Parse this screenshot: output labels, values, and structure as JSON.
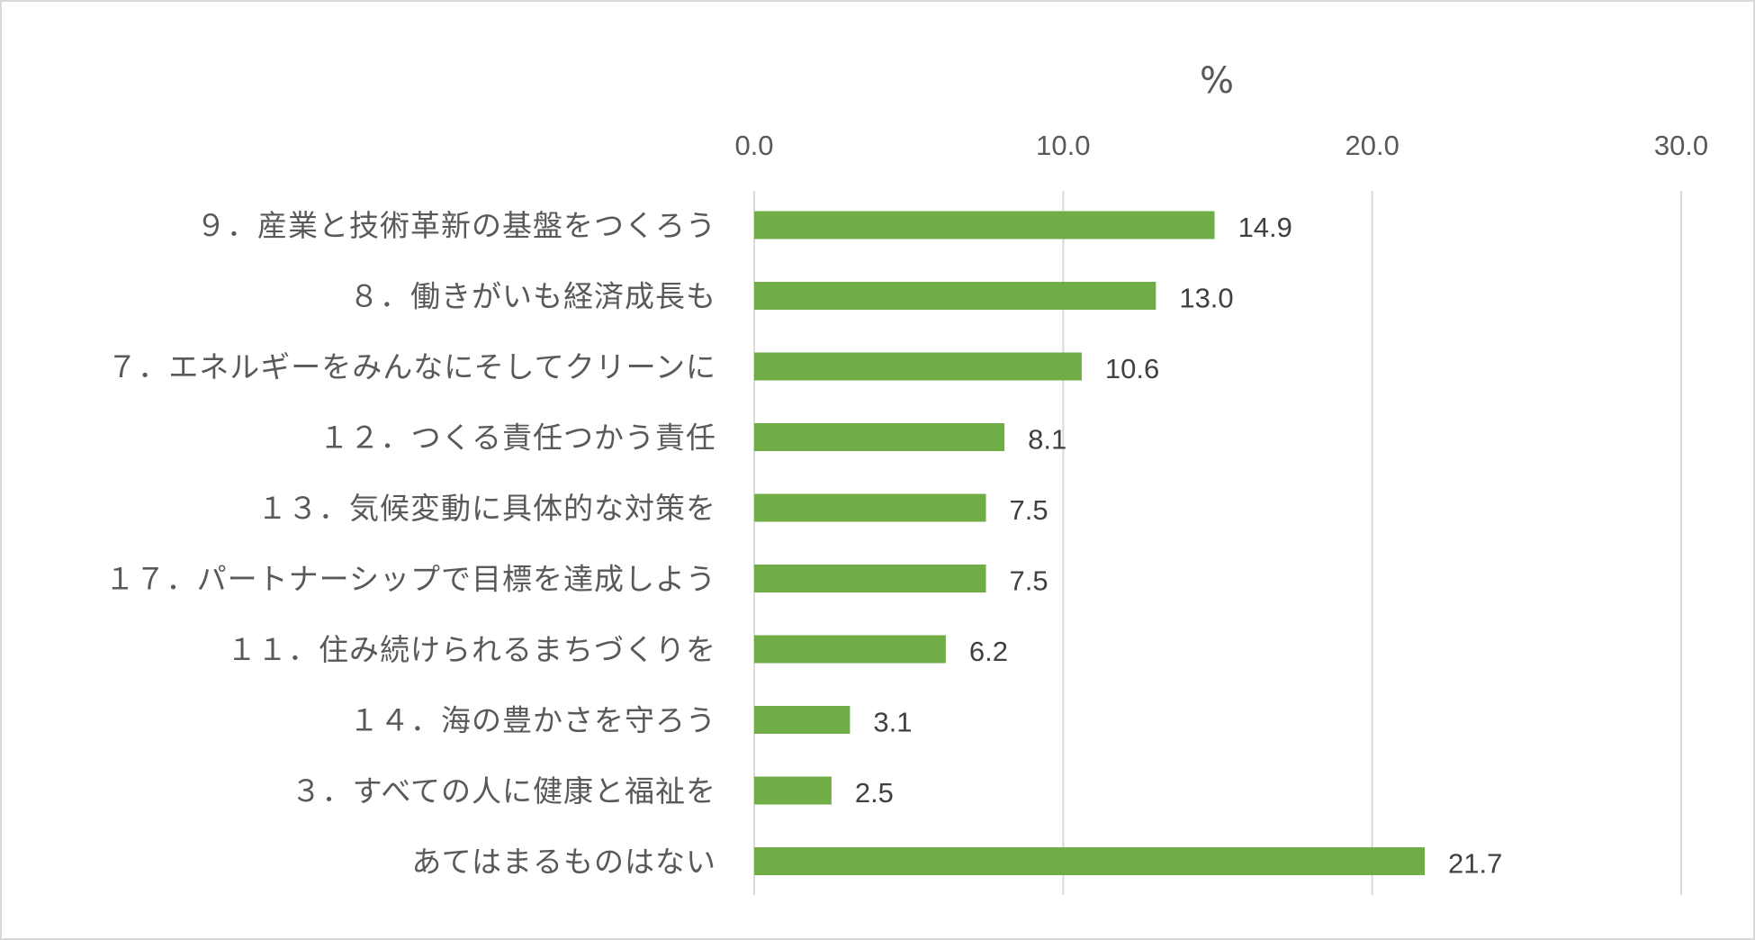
{
  "chart_data": {
    "type": "bar",
    "orientation": "horizontal",
    "x_unit_label": "%",
    "xlim": [
      0,
      30
    ],
    "x_ticks": [
      "0.0",
      "10.0",
      "20.0",
      "30.0"
    ],
    "grid": true,
    "legend": "none",
    "bar_color": "#70ad47",
    "categories": [
      "９．産業と技術革新の基盤をつくろう",
      "８．働きがいも経済成長も",
      "７．エネルギーをみんなにそしてクリーンに",
      "１２．つくる責任つかう責任",
      "１３．気候変動に具体的な対策を",
      "１７．パートナーシップで目標を達成しよう",
      "１１．住み続けられるまちづくりを",
      "１４．海の豊かさを守ろう",
      "３．すべての人に健康と福祉を",
      "あてはまるものはない"
    ],
    "values": [
      14.9,
      13.0,
      10.6,
      8.1,
      7.5,
      7.5,
      6.2,
      3.1,
      2.5,
      21.7
    ],
    "value_labels": [
      "14.9",
      "13.0",
      "10.6",
      "8.1",
      "7.5",
      "7.5",
      "6.2",
      "3.1",
      "2.5",
      "21.7"
    ]
  }
}
